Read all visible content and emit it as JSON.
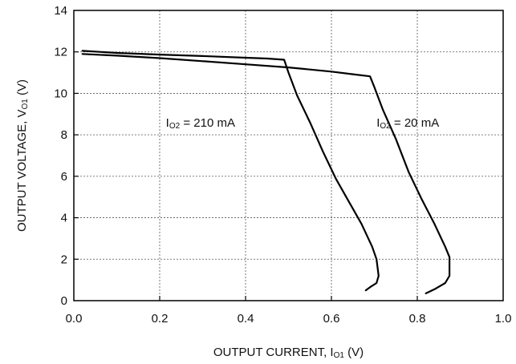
{
  "chart_data": {
    "type": "line",
    "xlabel": {
      "main": "OUTPUT CURRENT, I",
      "sub": "O1",
      "suffix": " (V)"
    },
    "ylabel": {
      "main": "OUTPUT VOLTAGE, V",
      "sub": "O1",
      "suffix": " (V)"
    },
    "xlim": [
      0.0,
      1.0
    ],
    "ylim": [
      0,
      14
    ],
    "xticks": [
      0.0,
      0.2,
      0.4,
      0.6,
      0.8,
      1.0
    ],
    "xtick_labels": [
      "0.0",
      "0.2",
      "0.4",
      "0.6",
      "0.8",
      "1.0"
    ],
    "yticks": [
      0,
      2,
      4,
      6,
      8,
      10,
      12,
      14
    ],
    "ytick_labels": [
      "0",
      "2",
      "4",
      "6",
      "8",
      "10",
      "12",
      "14"
    ],
    "grid": true,
    "series": [
      {
        "label": {
          "main": "I",
          "sub": "O2",
          "suffix": " = 210 mA"
        },
        "x": [
          0.02,
          0.1,
          0.2,
          0.3,
          0.4,
          0.45,
          0.49,
          0.5,
          0.52,
          0.55,
          0.58,
          0.61,
          0.64,
          0.67,
          0.695,
          0.705,
          0.71,
          0.705,
          0.69,
          0.68
        ],
        "y": [
          12.05,
          11.95,
          11.87,
          11.8,
          11.72,
          11.68,
          11.62,
          11.0,
          9.9,
          8.6,
          7.2,
          5.9,
          4.8,
          3.7,
          2.6,
          2.0,
          1.2,
          0.85,
          0.65,
          0.5
        ]
      },
      {
        "label": {
          "main": "I",
          "sub": "O2",
          "suffix": " = 20 mA"
        },
        "x": [
          0.02,
          0.1,
          0.2,
          0.3,
          0.4,
          0.5,
          0.6,
          0.65,
          0.69,
          0.7,
          0.72,
          0.75,
          0.78,
          0.81,
          0.84,
          0.865,
          0.875,
          0.875,
          0.865,
          0.84,
          0.82
        ],
        "y": [
          11.9,
          11.82,
          11.7,
          11.55,
          11.4,
          11.25,
          11.05,
          10.92,
          10.82,
          10.3,
          9.2,
          7.8,
          6.2,
          4.9,
          3.7,
          2.6,
          2.1,
          1.2,
          0.85,
          0.55,
          0.35
        ]
      }
    ]
  }
}
